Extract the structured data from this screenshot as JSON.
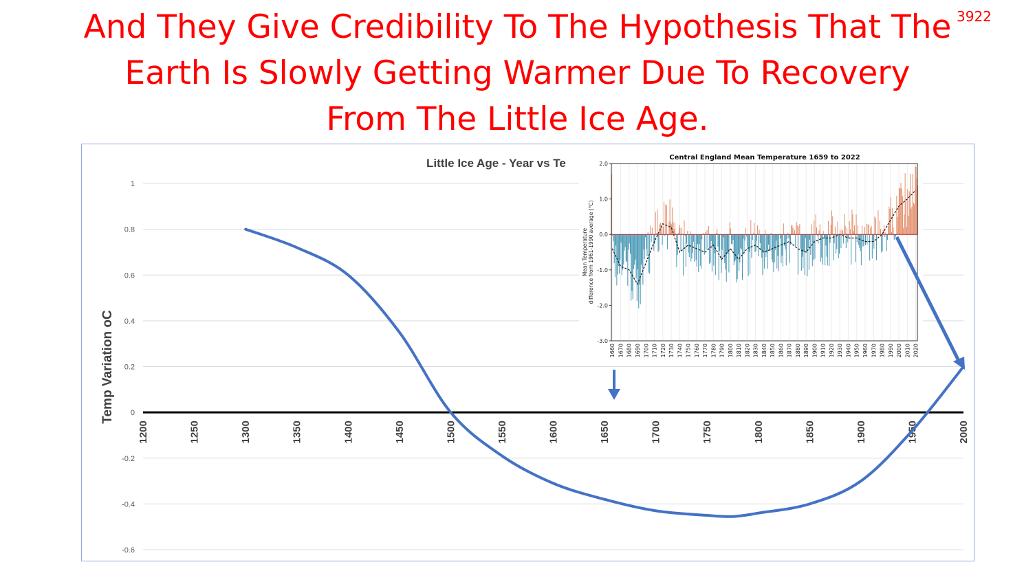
{
  "slide": {
    "title_lines": [
      "And They Give Credibility To The Hypothesis That The",
      "Earth Is Slowly Getting Warmer Due To Recovery",
      "From The Little Ice Age."
    ],
    "slide_number": "3922"
  },
  "colors": {
    "title": "#ff0000",
    "main_curve": "#4472c4",
    "inset_positive": "#e07b54",
    "inset_negative": "#2a86a8",
    "arrow": "#4472c4"
  },
  "chart_data": [
    {
      "type": "line",
      "title": "Little Ice Age - Year vs Te",
      "xlabel": "",
      "ylabel": "Temp Variation oC",
      "xlim": [
        1200,
        2000
      ],
      "ylim": [
        -0.6,
        1
      ],
      "x_ticks": [
        "1200",
        "1250",
        "1300",
        "1350",
        "1400",
        "1450",
        "1500",
        "1550",
        "1600",
        "1650",
        "1700",
        "1750",
        "1800",
        "1850",
        "1900",
        "1950",
        "2000"
      ],
      "y_ticks": [
        "1",
        "0.8",
        "0.6",
        "0.4",
        "0.2",
        "0",
        "-0.2",
        "-0.4",
        "-0.6"
      ],
      "grid": true,
      "series": [
        {
          "x": [
            1300,
            1350,
            1400,
            1450,
            1500,
            1550,
            1600,
            1650,
            1700,
            1750,
            1775,
            1800,
            1850,
            1900,
            1950,
            2000
          ],
          "values": [
            0.8,
            0.72,
            0.6,
            0.35,
            0.0,
            -0.19,
            -0.31,
            -0.38,
            -0.43,
            -0.45,
            -0.455,
            -0.44,
            -0.4,
            -0.3,
            -0.08,
            0.2
          ]
        }
      ]
    },
    {
      "type": "bar",
      "title": "Central England Mean Temperature 1659 to 2022",
      "ylabel": "Mean Temperature\ndifference from 1961-1990 average (°C)",
      "xlim": [
        1659,
        2022
      ],
      "ylim": [
        -3.0,
        2.0
      ],
      "x_ticks": [
        "1660",
        "1670",
        "1680",
        "1690",
        "1700",
        "1710",
        "1720",
        "1730",
        "1740",
        "1750",
        "1760",
        "1770",
        "1780",
        "1790",
        "1800",
        "1810",
        "1820",
        "1830",
        "1840",
        "1850",
        "1860",
        "1870",
        "1880",
        "1890",
        "1900",
        "1910",
        "1920",
        "1930",
        "1940",
        "1950",
        "1960",
        "1970",
        "1980",
        "1990",
        "2000",
        "2010",
        "2020"
      ],
      "y_ticks": [
        "2.0",
        "1.0",
        "0.0",
        "-1.0",
        "-2.0",
        "-3.0"
      ],
      "smoothed_decades": {
        "x": [
          1660,
          1670,
          1680,
          1690,
          1700,
          1710,
          1720,
          1730,
          1740,
          1750,
          1760,
          1770,
          1780,
          1790,
          1800,
          1810,
          1820,
          1830,
          1840,
          1850,
          1860,
          1870,
          1880,
          1890,
          1900,
          1910,
          1920,
          1930,
          1940,
          1950,
          1960,
          1970,
          1980,
          1990,
          2000,
          2010,
          2020
        ],
        "values": [
          -0.4,
          -0.9,
          -1.0,
          -1.4,
          -0.8,
          -0.2,
          0.3,
          0.2,
          -0.5,
          -0.3,
          -0.4,
          -0.5,
          -0.3,
          -0.7,
          -0.4,
          -0.7,
          -0.4,
          -0.3,
          -0.5,
          -0.4,
          -0.3,
          -0.2,
          -0.4,
          -0.5,
          -0.2,
          -0.1,
          -0.1,
          0.0,
          -0.1,
          -0.1,
          -0.2,
          -0.2,
          0.0,
          0.4,
          0.8,
          1.0,
          1.25
        ]
      }
    }
  ]
}
